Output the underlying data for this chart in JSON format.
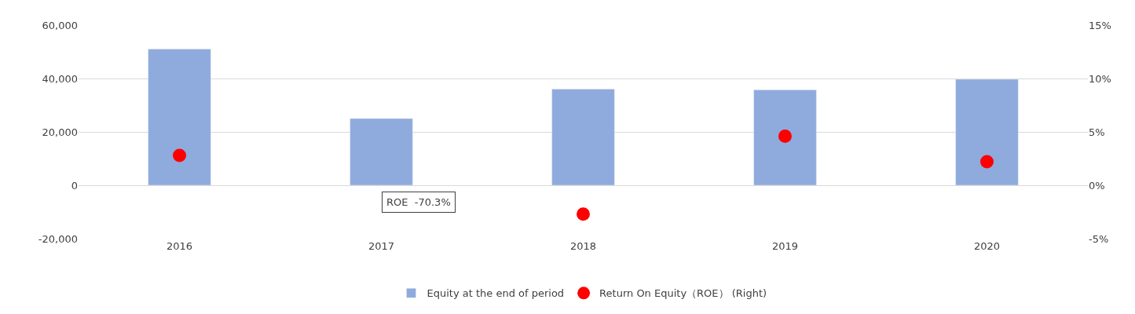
{
  "chart_data": {
    "type": "bar",
    "categories": [
      "2016",
      "2017",
      "2018",
      "2019",
      "2020"
    ],
    "series": [
      {
        "name": "Equity at the end of period",
        "color": "#8faadc",
        "values": [
          51000,
          25000,
          36000,
          35700,
          39700
        ]
      },
      {
        "name": "Return On Equity（ROE） (Right)",
        "type": "scatter",
        "axis": "y2",
        "color": "#ff0000",
        "values": [
          2.8,
          null,
          -2.7,
          4.6,
          2.2
        ]
      }
    ],
    "ylim": [
      -20000,
      60000
    ],
    "yticks": [
      {
        "value": -20000,
        "label": "-20,000"
      },
      {
        "value": 0,
        "label": "0"
      },
      {
        "value": 20000,
        "label": "20,000"
      },
      {
        "value": 40000,
        "label": "40,000"
      },
      {
        "value": 60000,
        "label": "60,000"
      }
    ],
    "y2lim": [
      -5,
      15
    ],
    "y2ticks": [
      {
        "value": -5,
        "label": "-5%"
      },
      {
        "value": 0,
        "label": "0%"
      },
      {
        "value": 5,
        "label": "5%"
      },
      {
        "value": 10,
        "label": "10%"
      },
      {
        "value": 15,
        "label": "15%"
      }
    ],
    "annotations": [
      "ROE  -70.3%"
    ],
    "grid": "y",
    "legend": "bottom",
    "marker": "circle"
  }
}
